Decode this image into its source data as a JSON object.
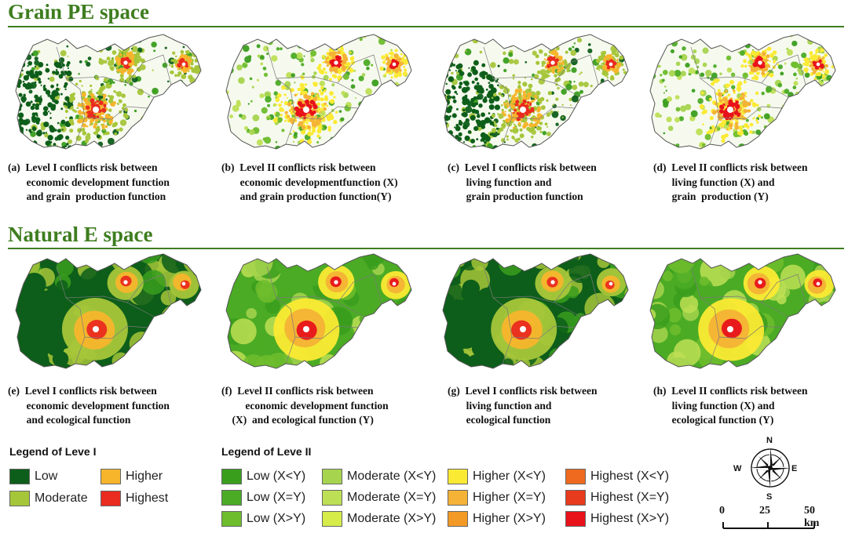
{
  "sections": {
    "grain_title": "Grain PE space",
    "natural_title": "Natural E space"
  },
  "colors": {
    "title_green": "#3e7d1f",
    "level1": {
      "low": "#0d5e1a",
      "moderate": "#a6c63a",
      "higher": "#f7b52c",
      "highest": "#ea2b1f"
    },
    "level2": [
      [
        "#3a9e1d",
        "#a6d44e",
        "#fbea33",
        "#ef6a1e"
      ],
      [
        "#4bab25",
        "#bddf55",
        "#f4b236",
        "#e83a1c"
      ],
      [
        "#6ebd2d",
        "#d6ec49",
        "#f39a26",
        "#e8121b"
      ]
    ]
  },
  "panels": [
    {
      "id": "a",
      "caption": "(a)  Level I conflicts risk between\n       economic development function\n       and grain  production function",
      "space": "grain",
      "level": "I"
    },
    {
      "id": "b",
      "caption": "(b)  Level II conflicts risk between\n       economic developmentfunction (X)\n       and grain production function(Y)",
      "space": "grain",
      "level": "II"
    },
    {
      "id": "c",
      "caption": "(c)  Level I conflicts risk between\n       living function and\n       grain production function",
      "space": "grain",
      "level": "I"
    },
    {
      "id": "d",
      "caption": "(d)  Level II conflicts risk between\n       living function (X) and\n       grain  production (Y)",
      "space": "grain",
      "level": "II"
    },
    {
      "id": "e",
      "caption": "(e)  Level I conflicts risk between\n       economic development function\n       and ecological function",
      "space": "natural",
      "level": "I"
    },
    {
      "id": "f",
      "caption": "(f)  Level II conflicts risk between\n         economic development function\n    (X)  and ecological function (Y)",
      "space": "natural",
      "level": "II"
    },
    {
      "id": "g",
      "caption": "(g)  Level I conflicts risk between\n       living function and\n       ecological function",
      "space": "natural",
      "level": "I"
    },
    {
      "id": "h",
      "caption": "(h)  Level II conflicts risk between\n       living function (X) and\n       ecological function (Y)",
      "space": "natural",
      "level": "II"
    }
  ],
  "legend1": {
    "title": "Legend of Leve I",
    "items": [
      {
        "label": "Low",
        "color": "#0d5e1a"
      },
      {
        "label": "Higher",
        "color": "#f7b52c"
      },
      {
        "label": "Moderate",
        "color": "#a6c63a"
      },
      {
        "label": "Highest",
        "color": "#ea2b1f"
      }
    ]
  },
  "legend2": {
    "title": "Legend of Leve II",
    "rows": [
      [
        {
          "label": "Low (X<Y)",
          "color": "#3a9e1d"
        },
        {
          "label": "Moderate (X<Y)",
          "color": "#a6d44e"
        },
        {
          "label": "Higher (X<Y)",
          "color": "#fbea33"
        },
        {
          "label": "Highest (X<Y)",
          "color": "#ef6a1e"
        }
      ],
      [
        {
          "label": "Low (X=Y)",
          "color": "#4bab25"
        },
        {
          "label": "Moderate (X=Y)",
          "color": "#bddf55"
        },
        {
          "label": "Higher (X=Y)",
          "color": "#f4b236"
        },
        {
          "label": "Highest (X=Y)",
          "color": "#e83a1c"
        }
      ],
      [
        {
          "label": "Low (X>Y)",
          "color": "#6ebd2d"
        },
        {
          "label": "Moderate (X>Y)",
          "color": "#d6ec49"
        },
        {
          "label": "Higher (X>Y)",
          "color": "#f39a26"
        },
        {
          "label": "Highest (X>Y)",
          "color": "#e8121b"
        }
      ]
    ]
  },
  "compass": {
    "n": "N",
    "s": "S",
    "e": "E",
    "w": "W",
    "icon": "compass-rose-icon"
  },
  "scale": {
    "zero": "0",
    "mid": "25",
    "end": "50 km"
  }
}
